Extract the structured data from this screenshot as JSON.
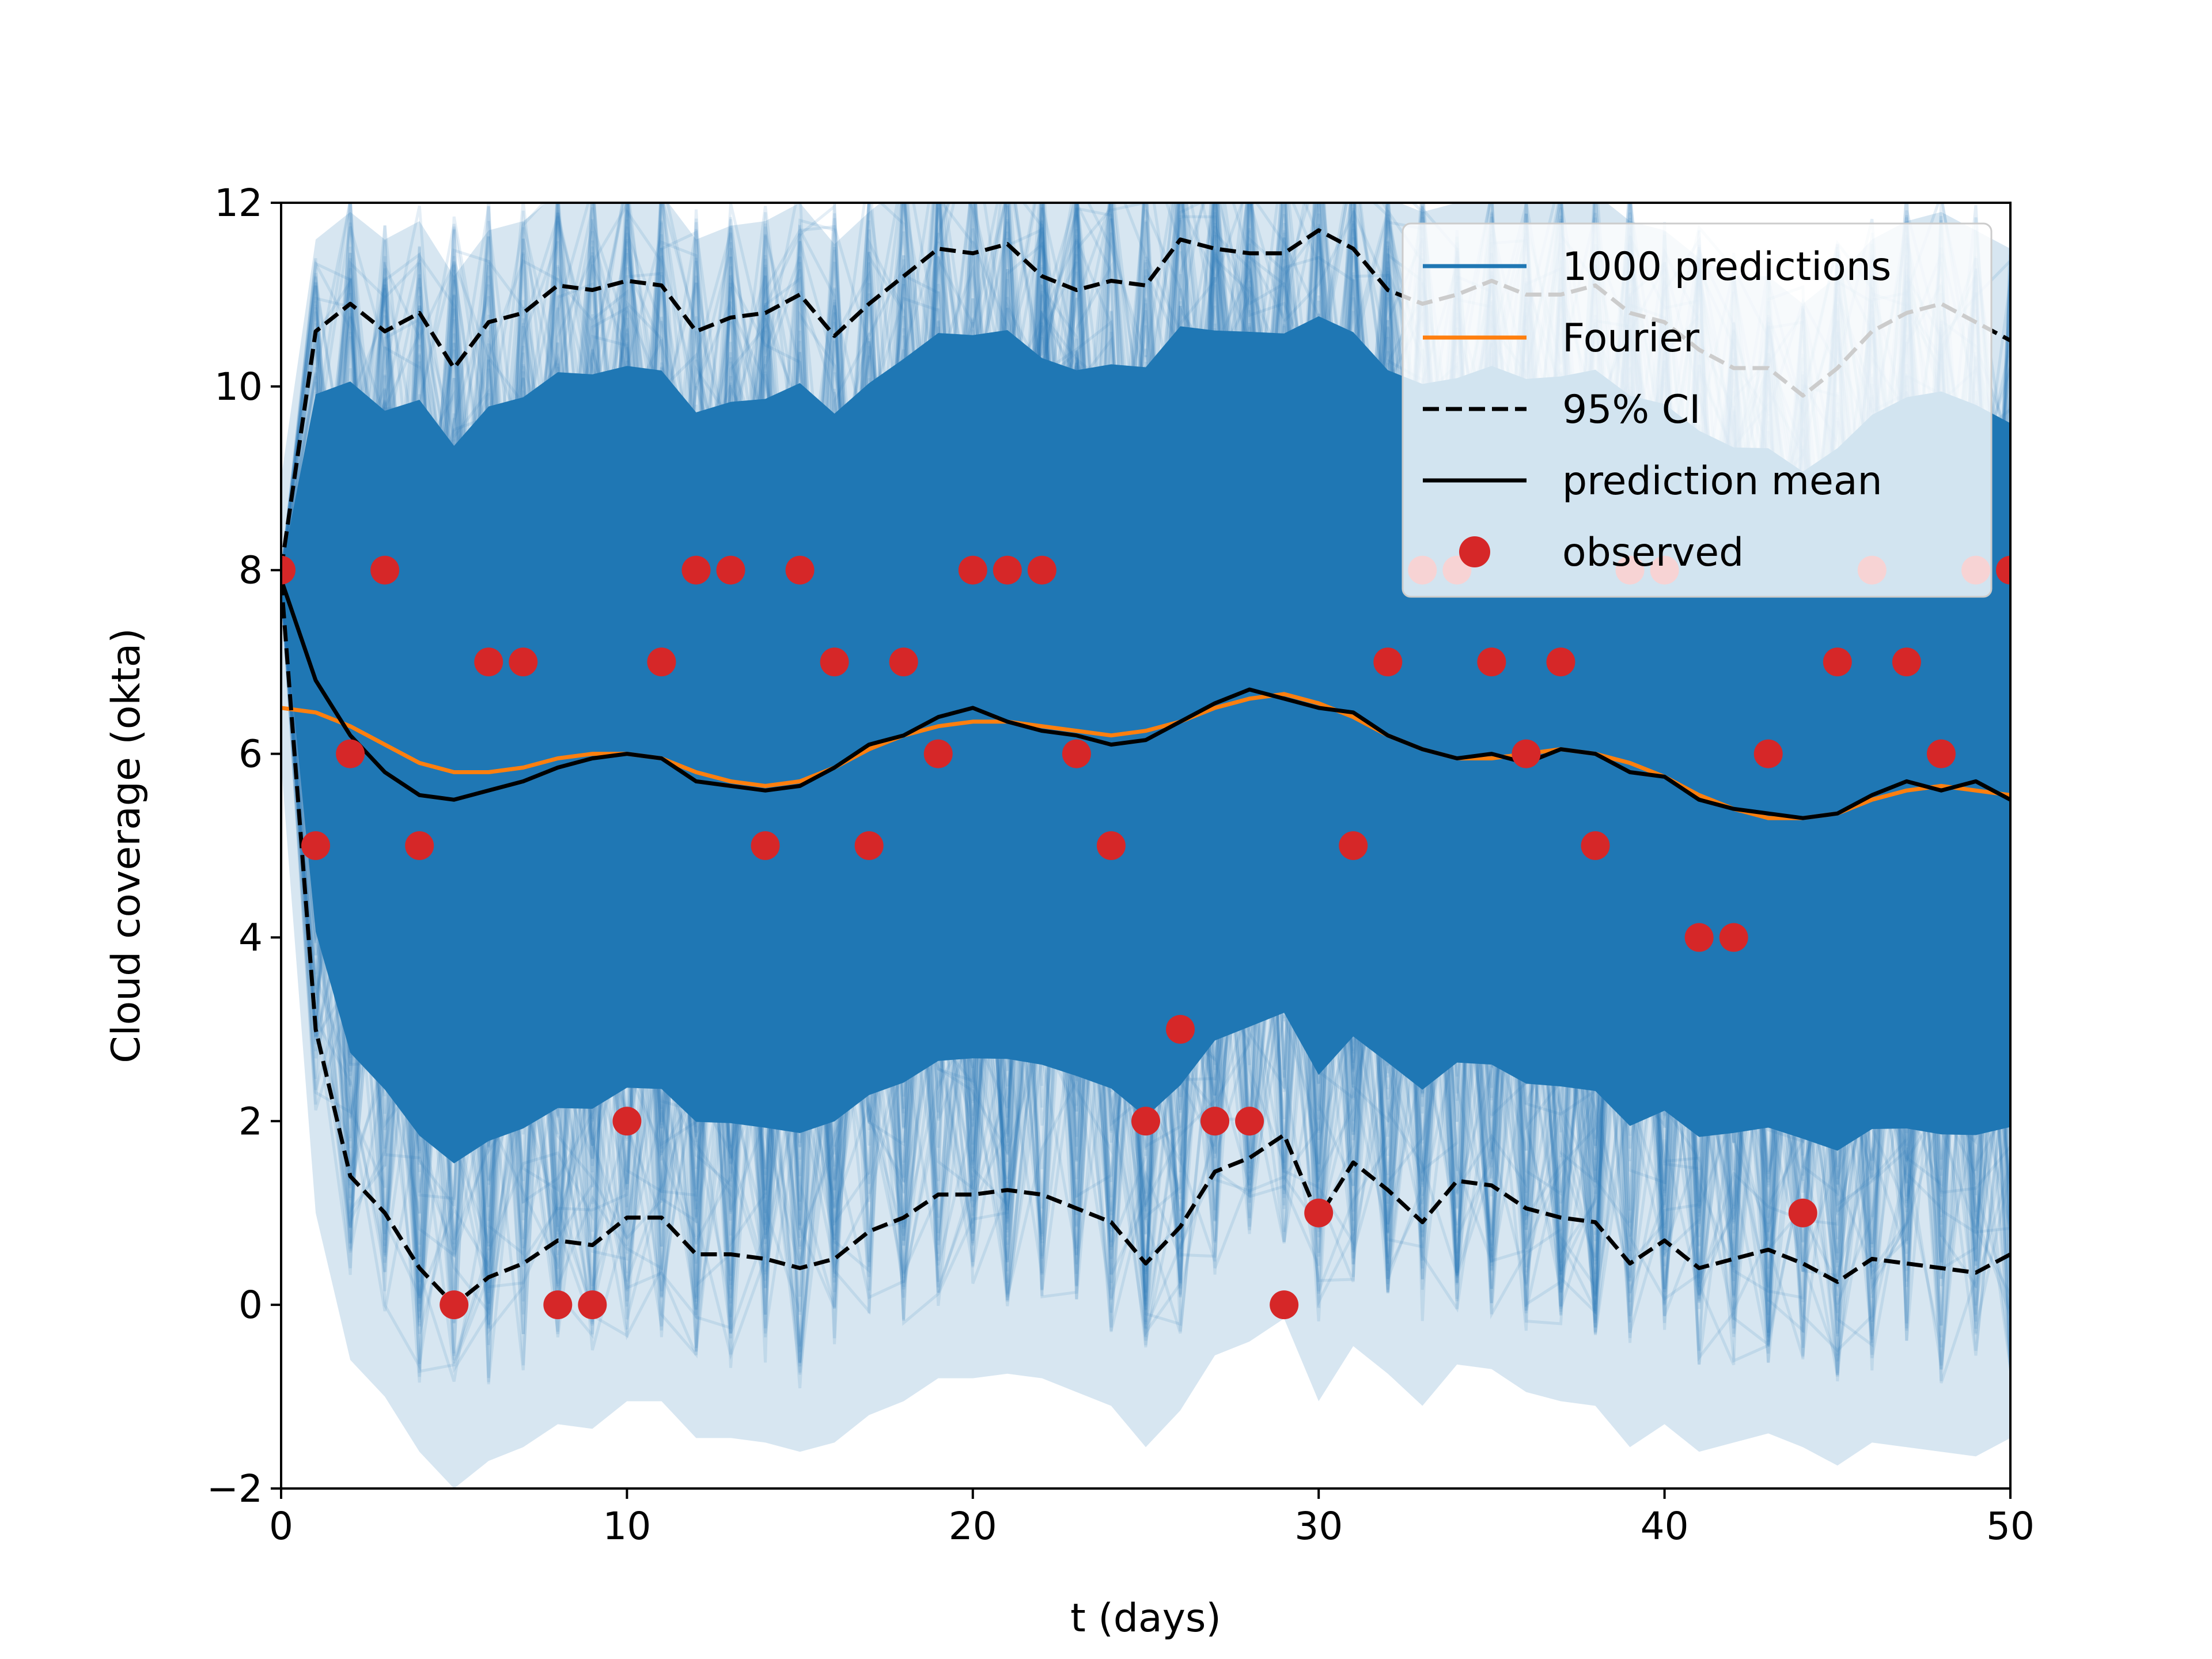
{
  "chart_data": {
    "type": "line",
    "xlabel": "t (days)",
    "ylabel": "Cloud coverage (okta)",
    "xlim": [
      0,
      50
    ],
    "ylim": [
      -2,
      12
    ],
    "xticks": [
      0,
      10,
      20,
      30,
      40,
      50
    ],
    "xtick_labels": [
      "0",
      "10",
      "20",
      "30",
      "40",
      "50"
    ],
    "yticks": [
      -2,
      0,
      2,
      4,
      6,
      8,
      10,
      12
    ],
    "ytick_labels": [
      "−2",
      "0",
      "2",
      "4",
      "6",
      "8",
      "10",
      "12"
    ],
    "grid": false,
    "legend_position": "top-right",
    "legend": [
      {
        "label": "1000 predictions",
        "kind": "line",
        "color": "#1f77b4"
      },
      {
        "label": "Fourier",
        "kind": "line",
        "color": "#ff7f0e"
      },
      {
        "label": "95% CI",
        "kind": "dashed",
        "color": "#000000"
      },
      {
        "label": "prediction mean",
        "kind": "line",
        "color": "#000000"
      },
      {
        "label": "observed",
        "kind": "marker",
        "color": "#d62728"
      }
    ],
    "x": [
      0,
      1,
      2,
      3,
      4,
      5,
      6,
      7,
      8,
      9,
      10,
      11,
      12,
      13,
      14,
      15,
      16,
      17,
      18,
      19,
      20,
      21,
      22,
      23,
      24,
      25,
      26,
      27,
      28,
      29,
      30,
      31,
      32,
      33,
      34,
      35,
      36,
      37,
      38,
      39,
      40,
      41,
      42,
      43,
      44,
      45,
      46,
      47,
      48,
      49,
      50
    ],
    "series": [
      {
        "name": "Fourier",
        "color": "#ff7f0e",
        "values": [
          6.5,
          6.45,
          6.3,
          6.1,
          5.9,
          5.8,
          5.8,
          5.85,
          5.95,
          6.0,
          6.0,
          5.95,
          5.8,
          5.7,
          5.65,
          5.7,
          5.85,
          6.05,
          6.2,
          6.3,
          6.35,
          6.35,
          6.3,
          6.25,
          6.2,
          6.25,
          6.35,
          6.5,
          6.6,
          6.65,
          6.55,
          6.4,
          6.2,
          6.05,
          5.95,
          5.95,
          6.0,
          6.05,
          6.0,
          5.9,
          5.75,
          5.55,
          5.4,
          5.3,
          5.3,
          5.35,
          5.5,
          5.6,
          5.65,
          5.6,
          5.55
        ]
      },
      {
        "name": "prediction mean",
        "color": "#000000",
        "values": [
          7.9,
          6.8,
          6.2,
          5.8,
          5.55,
          5.5,
          5.6,
          5.7,
          5.85,
          5.95,
          6.0,
          5.95,
          5.7,
          5.65,
          5.6,
          5.65,
          5.85,
          6.1,
          6.2,
          6.4,
          6.5,
          6.35,
          6.25,
          6.2,
          6.1,
          6.15,
          6.35,
          6.55,
          6.7,
          6.6,
          6.5,
          6.45,
          6.2,
          6.05,
          5.95,
          6.0,
          5.9,
          6.05,
          6.0,
          5.8,
          5.75,
          5.5,
          5.4,
          5.35,
          5.3,
          5.35,
          5.55,
          5.7,
          5.6,
          5.7,
          5.5
        ]
      },
      {
        "name": "95% CI upper",
        "color": "#000000",
        "values": [
          8.0,
          10.6,
          10.9,
          10.6,
          10.8,
          10.2,
          10.7,
          10.8,
          11.1,
          11.05,
          11.15,
          11.1,
          10.6,
          10.75,
          10.8,
          11.0,
          10.55,
          10.9,
          11.2,
          11.5,
          11.45,
          11.55,
          11.2,
          11.05,
          11.15,
          11.1,
          11.6,
          11.5,
          11.45,
          11.45,
          11.7,
          11.5,
          11.05,
          10.9,
          11.0,
          11.15,
          11.0,
          11.0,
          11.1,
          10.8,
          10.7,
          10.4,
          10.2,
          10.2,
          9.9,
          10.2,
          10.6,
          10.8,
          10.9,
          10.7,
          10.5
        ]
      },
      {
        "name": "95% CI lower",
        "color": "#000000",
        "values": [
          7.9,
          3.0,
          1.4,
          1.0,
          0.4,
          0.0,
          0.3,
          0.45,
          0.7,
          0.65,
          0.95,
          0.95,
          0.55,
          0.55,
          0.5,
          0.4,
          0.5,
          0.8,
          0.95,
          1.2,
          1.2,
          1.25,
          1.2,
          1.05,
          0.9,
          0.45,
          0.85,
          1.45,
          1.6,
          1.85,
          0.95,
          1.55,
          1.25,
          0.9,
          1.35,
          1.3,
          1.05,
          0.95,
          0.9,
          0.45,
          0.7,
          0.4,
          0.5,
          0.6,
          0.45,
          0.25,
          0.5,
          0.45,
          0.4,
          0.35,
          0.55
        ]
      },
      {
        "name": "observed",
        "color": "#d62728",
        "values": [
          8,
          5,
          6,
          8,
          5,
          0,
          7,
          7,
          0,
          0,
          2,
          7,
          8,
          8,
          5,
          8,
          7,
          5,
          7,
          6,
          8,
          8,
          8,
          6,
          5,
          2,
          3,
          2,
          2,
          0,
          1,
          5,
          7,
          8,
          8,
          7,
          6,
          7,
          5,
          8,
          8,
          4,
          4,
          6,
          1,
          7,
          8,
          7,
          6,
          8,
          8
        ]
      }
    ],
    "ensemble": {
      "name": "1000 predictions",
      "count": 1000,
      "color": "#1f77b4"
    }
  }
}
